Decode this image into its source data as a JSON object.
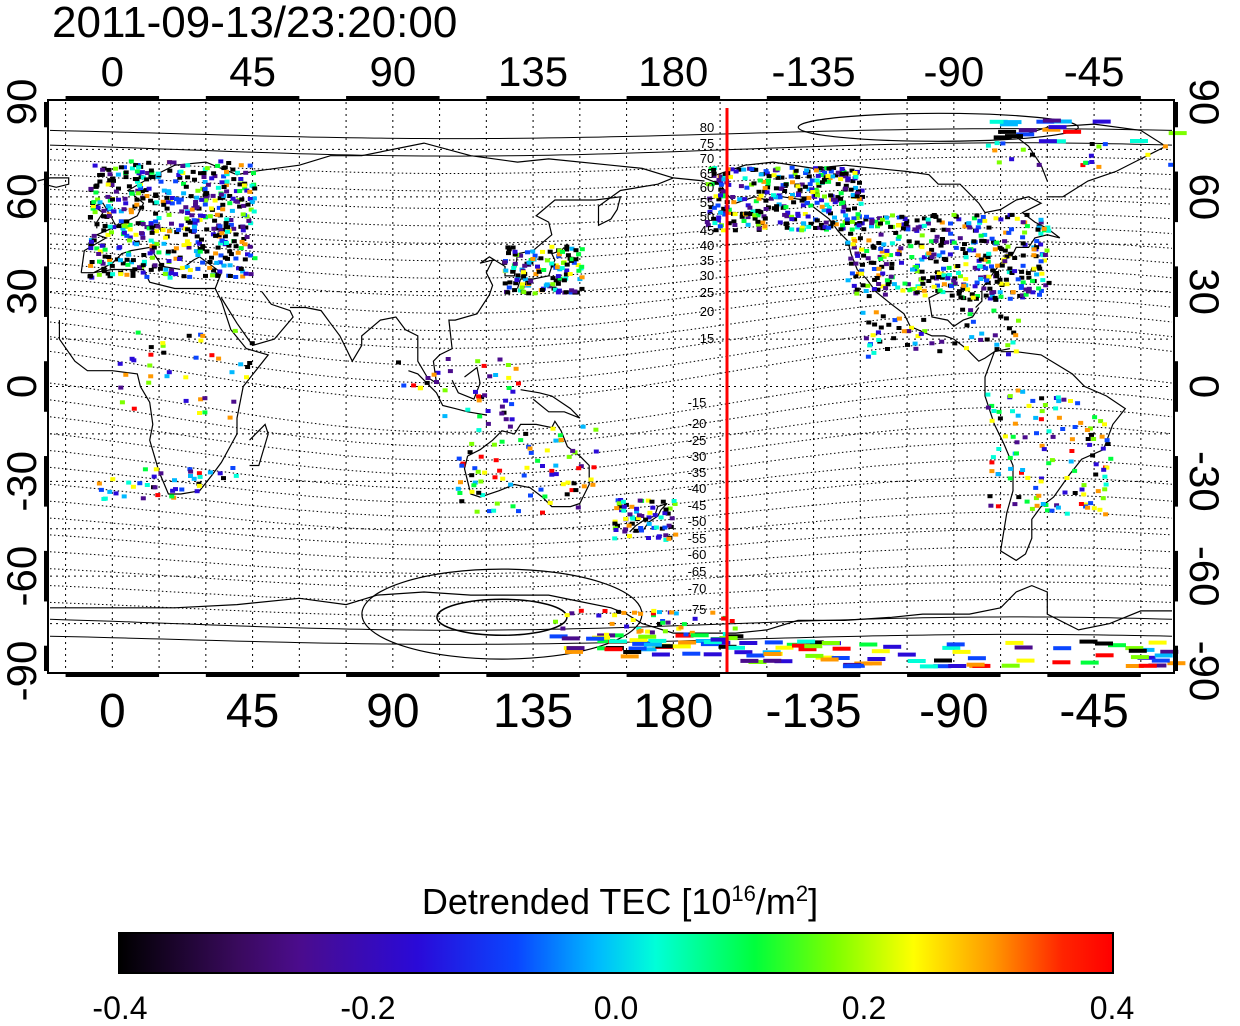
{
  "title": "2011-09-13/23:20:00",
  "map": {
    "top_lon_labels": [
      "0",
      "45",
      "90",
      "135",
      "180",
      "-135",
      "-90",
      "-45"
    ],
    "bottom_lon_labels": [
      "0",
      "45",
      "90",
      "135",
      "180",
      "-135",
      "-90",
      "-45"
    ],
    "left_lat_labels": [
      "90",
      "60",
      "30",
      "0",
      "-30",
      "-60",
      "-90"
    ],
    "right_lat_labels": [
      "90",
      "60",
      "30",
      "0",
      "-30",
      "-60",
      "-90"
    ],
    "lon_range": [
      -20,
      340
    ],
    "lat_range": [
      -90,
      90
    ],
    "grid": "dotted, every 15 degrees",
    "contour_labels_north": [
      "80",
      "75",
      "70",
      "65",
      "60",
      "55",
      "50",
      "45",
      "40",
      "35",
      "30",
      "25",
      "20",
      "15"
    ],
    "contour_labels_south": [
      "-15",
      "-20",
      "-25",
      "-30",
      "-35",
      "-40",
      "-45",
      "-50",
      "-55",
      "-60",
      "-65",
      "-70",
      "-75"
    ],
    "terminator_line_lon": 190,
    "terminator_color": "#ff0000"
  },
  "colorbar": {
    "title_prefix": "Detrended TEC  [10",
    "title_exp": "16",
    "title_unit": "/m",
    "title_unit_exp": "2",
    "title_suffix": "]",
    "min": -0.4,
    "max": 0.4,
    "labels": [
      "-0.4",
      "-0.2",
      "0.0",
      "0.2",
      "0.4"
    ],
    "colors": [
      "#000000",
      "#4b0c8c",
      "#2a0ad8",
      "#0a46ff",
      "#00b8ff",
      "#00ffd8",
      "#00ff3c",
      "#7cff00",
      "#ffff00",
      "#ff9800",
      "#ff0000"
    ]
  }
}
